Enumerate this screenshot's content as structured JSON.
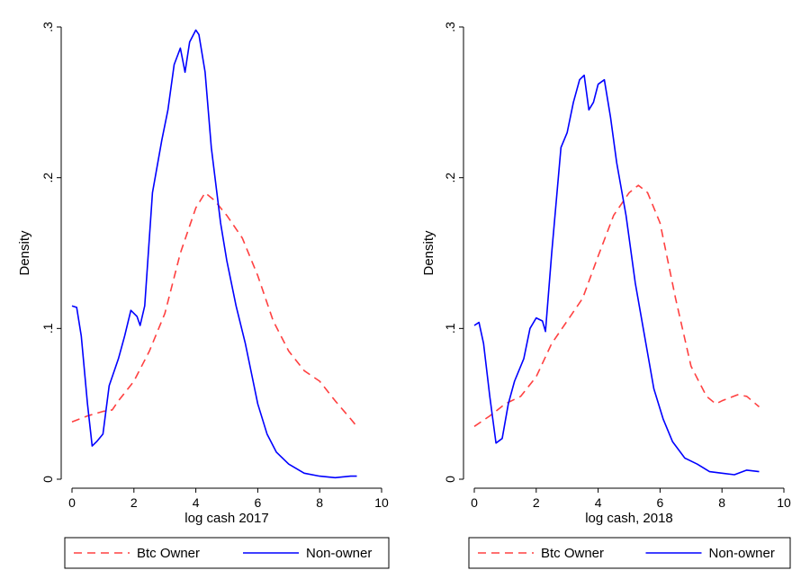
{
  "chart_data": [
    {
      "type": "line",
      "xlabel": "log cash 2017",
      "ylabel": "Density",
      "xlim": [
        0,
        10
      ],
      "ylim": [
        0,
        0.3
      ],
      "xticks": [
        0,
        2,
        4,
        6,
        8,
        10
      ],
      "xtick_labels": [
        "0",
        "2",
        "4",
        "6",
        "8",
        "10"
      ],
      "yticks": [
        0,
        0.1,
        0.2,
        0.3
      ],
      "ytick_labels": [
        "0",
        ".1",
        ".2",
        ".3"
      ],
      "grid": false,
      "legend_position": "bottom",
      "series": [
        {
          "name": "Btc Owner",
          "color": "#ff4040",
          "dash": "dashed",
          "x": [
            0,
            0.5,
            1.0,
            1.3,
            1.5,
            2.0,
            2.5,
            3.0,
            3.5,
            4.0,
            4.3,
            4.6,
            5.0,
            5.5,
            6.0,
            6.5,
            7.0,
            7.5,
            8.0,
            8.5,
            9.0,
            9.2
          ],
          "y": [
            0.038,
            0.042,
            0.045,
            0.046,
            0.052,
            0.065,
            0.085,
            0.11,
            0.15,
            0.18,
            0.19,
            0.185,
            0.175,
            0.16,
            0.135,
            0.105,
            0.085,
            0.072,
            0.065,
            0.052,
            0.04,
            0.035
          ]
        },
        {
          "name": "Non-owner",
          "color": "#0000ff",
          "dash": "solid",
          "x": [
            0,
            0.15,
            0.3,
            0.5,
            0.65,
            0.8,
            1.0,
            1.2,
            1.5,
            1.7,
            1.9,
            2.1,
            2.2,
            2.35,
            2.6,
            2.9,
            3.1,
            3.3,
            3.5,
            3.65,
            3.8,
            4.0,
            4.1,
            4.3,
            4.5,
            4.8,
            5.0,
            5.3,
            5.6,
            5.8,
            6.0,
            6.3,
            6.6,
            7.0,
            7.5,
            8.0,
            8.5,
            9.0,
            9.2
          ],
          "y": [
            0.115,
            0.114,
            0.095,
            0.05,
            0.022,
            0.025,
            0.03,
            0.062,
            0.08,
            0.095,
            0.112,
            0.108,
            0.102,
            0.115,
            0.19,
            0.225,
            0.245,
            0.275,
            0.286,
            0.27,
            0.29,
            0.298,
            0.295,
            0.27,
            0.22,
            0.17,
            0.145,
            0.115,
            0.09,
            0.07,
            0.05,
            0.03,
            0.018,
            0.01,
            0.004,
            0.002,
            0.001,
            0.002,
            0.002
          ]
        }
      ]
    },
    {
      "type": "line",
      "xlabel": "log cash, 2018",
      "ylabel": "Density",
      "xlim": [
        0,
        10
      ],
      "ylim": [
        0,
        0.3
      ],
      "xticks": [
        0,
        2,
        4,
        6,
        8,
        10
      ],
      "xtick_labels": [
        "0",
        "2",
        "4",
        "6",
        "8",
        "10"
      ],
      "yticks": [
        0,
        0.1,
        0.2,
        0.3
      ],
      "ytick_labels": [
        "0",
        ".1",
        ".2",
        ".3"
      ],
      "grid": false,
      "legend_position": "bottom",
      "series": [
        {
          "name": "Btc Owner",
          "color": "#ff4040",
          "dash": "dashed",
          "x": [
            0,
            0.5,
            1.0,
            1.5,
            2.0,
            2.5,
            3.0,
            3.5,
            4.0,
            4.5,
            5.0,
            5.3,
            5.6,
            6.0,
            6.5,
            7.0,
            7.5,
            7.8,
            8.0,
            8.5,
            8.8,
            9.2
          ],
          "y": [
            0.035,
            0.042,
            0.05,
            0.055,
            0.068,
            0.09,
            0.105,
            0.12,
            0.148,
            0.175,
            0.19,
            0.195,
            0.19,
            0.17,
            0.12,
            0.075,
            0.055,
            0.05,
            0.052,
            0.056,
            0.055,
            0.048
          ]
        },
        {
          "name": "Non-owner",
          "color": "#0000ff",
          "dash": "solid",
          "x": [
            0,
            0.15,
            0.3,
            0.5,
            0.7,
            0.9,
            1.1,
            1.3,
            1.6,
            1.8,
            2.0,
            2.2,
            2.3,
            2.5,
            2.8,
            3.0,
            3.2,
            3.4,
            3.55,
            3.7,
            3.85,
            4.0,
            4.2,
            4.4,
            4.6,
            4.9,
            5.2,
            5.5,
            5.8,
            6.1,
            6.4,
            6.8,
            7.2,
            7.6,
            8.0,
            8.4,
            8.8,
            9.2
          ],
          "y": [
            0.102,
            0.104,
            0.09,
            0.055,
            0.024,
            0.027,
            0.05,
            0.065,
            0.08,
            0.1,
            0.107,
            0.105,
            0.098,
            0.15,
            0.22,
            0.23,
            0.25,
            0.265,
            0.268,
            0.245,
            0.25,
            0.262,
            0.265,
            0.24,
            0.21,
            0.175,
            0.13,
            0.095,
            0.06,
            0.04,
            0.025,
            0.014,
            0.01,
            0.005,
            0.004,
            0.003,
            0.006,
            0.005
          ]
        }
      ]
    }
  ]
}
